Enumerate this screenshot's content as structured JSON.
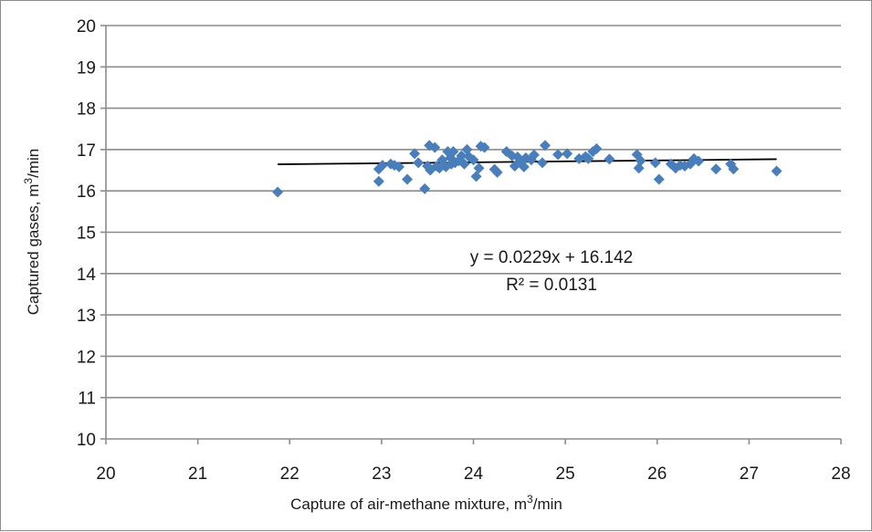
{
  "chart_data": {
    "type": "scatter",
    "title": "",
    "xlabel": "Capture of air-methane mixture, m",
    "xlabel_sup": "3",
    "xlabel_tail": "/min",
    "ylabel": "Captured gases, m",
    "ylabel_sup": "3",
    "ylabel_tail": "/min",
    "xlim": [
      20,
      28
    ],
    "ylim": [
      10,
      20
    ],
    "x_ticks": [
      "20",
      "21",
      "22",
      "23",
      "24",
      "25",
      "26",
      "27",
      "28"
    ],
    "y_ticks": [
      "10",
      "11",
      "12",
      "13",
      "14",
      "15",
      "16",
      "17",
      "18",
      "19",
      "20"
    ],
    "grid": "horizontal",
    "legend": "none",
    "marker": "diamond",
    "marker_color": "#4a7ebb",
    "trendline": {
      "slope": 0.0229,
      "intercept": 16.142,
      "x_range": [
        21.87,
        27.3
      ],
      "color": "#000000",
      "equation": "y = 0.0229x + 16.142",
      "r_squared": "R² = 0.0131"
    },
    "points": [
      [
        21.87,
        15.97
      ],
      [
        22.97,
        16.23
      ],
      [
        22.97,
        16.53
      ],
      [
        23.01,
        16.62
      ],
      [
        23.1,
        16.65
      ],
      [
        23.14,
        16.62
      ],
      [
        23.19,
        16.58
      ],
      [
        23.28,
        16.28
      ],
      [
        23.36,
        16.9
      ],
      [
        23.4,
        16.68
      ],
      [
        23.47,
        16.05
      ],
      [
        23.5,
        16.6
      ],
      [
        23.52,
        17.1
      ],
      [
        23.53,
        16.5
      ],
      [
        23.58,
        17.05
      ],
      [
        23.6,
        16.6
      ],
      [
        23.63,
        16.55
      ],
      [
        23.66,
        16.75
      ],
      [
        23.7,
        16.58
      ],
      [
        23.72,
        16.95
      ],
      [
        23.75,
        16.8
      ],
      [
        23.76,
        16.65
      ],
      [
        23.78,
        16.95
      ],
      [
        23.8,
        16.68
      ],
      [
        23.84,
        16.73
      ],
      [
        23.87,
        16.85
      ],
      [
        23.9,
        16.65
      ],
      [
        23.93,
        17.0
      ],
      [
        23.95,
        16.83
      ],
      [
        24.0,
        16.75
      ],
      [
        24.03,
        16.35
      ],
      [
        24.06,
        16.55
      ],
      [
        24.08,
        17.08
      ],
      [
        24.12,
        17.05
      ],
      [
        24.23,
        16.52
      ],
      [
        24.26,
        16.45
      ],
      [
        24.36,
        16.95
      ],
      [
        24.42,
        16.85
      ],
      [
        24.45,
        16.6
      ],
      [
        24.48,
        16.82
      ],
      [
        24.52,
        16.7
      ],
      [
        24.55,
        16.58
      ],
      [
        24.57,
        16.8
      ],
      [
        24.63,
        16.75
      ],
      [
        24.66,
        16.87
      ],
      [
        24.75,
        16.68
      ],
      [
        24.78,
        17.1
      ],
      [
        24.92,
        16.88
      ],
      [
        25.02,
        16.9
      ],
      [
        25.15,
        16.78
      ],
      [
        25.22,
        16.83
      ],
      [
        25.25,
        16.78
      ],
      [
        25.3,
        16.95
      ],
      [
        25.34,
        17.02
      ],
      [
        25.48,
        16.77
      ],
      [
        25.78,
        16.88
      ],
      [
        25.8,
        16.55
      ],
      [
        25.82,
        16.73
      ],
      [
        25.98,
        16.68
      ],
      [
        26.02,
        16.28
      ],
      [
        26.15,
        16.65
      ],
      [
        26.2,
        16.55
      ],
      [
        26.25,
        16.62
      ],
      [
        26.3,
        16.6
      ],
      [
        26.36,
        16.65
      ],
      [
        26.4,
        16.78
      ],
      [
        26.45,
        16.72
      ],
      [
        26.64,
        16.53
      ],
      [
        26.8,
        16.65
      ],
      [
        26.83,
        16.53
      ],
      [
        27.3,
        16.48
      ]
    ]
  }
}
